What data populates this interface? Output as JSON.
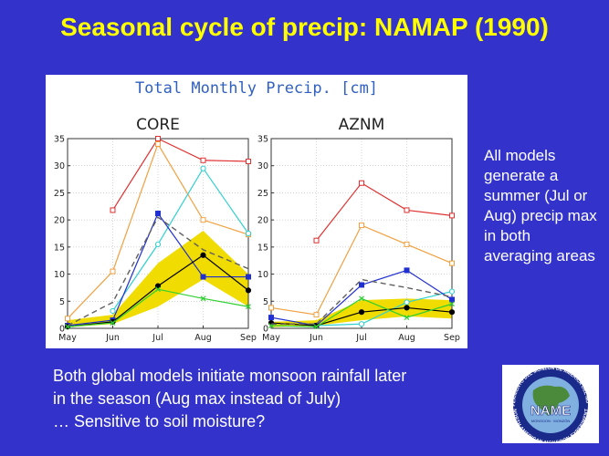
{
  "slide": {
    "title": "Seasonal cycle of precip: NAMAP (1990)",
    "side_note": "All models generate a summer (Jul or Aug) precip max in both averaging areas",
    "bottom_lines": [
      "Both global models initiate monsoon rainfall later",
      "in the season (Aug max instead of July)",
      "… Sensitive to soil moisture?"
    ],
    "logo": {
      "arc_top": "EXPERIMENTO DEL MONZÓN DE AMÉRICA DEL NORTE",
      "arc_bottom": "NORTH AMERICAN MONSOON EXPERIMENT",
      "center": "NAME",
      "small": "MONSOON · MONZÓN"
    }
  },
  "colors": {
    "background": "#3333cc",
    "title": "#ffff00",
    "band": "#f0dc00",
    "red": "#e03030",
    "orange": "#f0a040",
    "cyan": "#30d0d0",
    "blue": "#2030d0",
    "black": "#000000",
    "green": "#30d030",
    "dashed": "#606060"
  },
  "chart_data": {
    "title": "Total Monthly Precip. [cm]",
    "panels": [
      {
        "name": "CORE",
        "type": "line",
        "categories": [
          "May",
          "Jun",
          "Jul",
          "Aug",
          "Sep"
        ],
        "yticks": [
          0,
          5,
          10,
          15,
          20,
          25,
          30,
          35
        ],
        "ylim": [
          0,
          35
        ],
        "band": {
          "lower": [
            0.2,
            0.8,
            4,
            9,
            4
          ],
          "upper": [
            1.5,
            2.5,
            12,
            18,
            10
          ]
        },
        "series": [
          {
            "name": "red",
            "color": "#e03030",
            "marker": "square-open",
            "values": [
              null,
              21.8,
              35,
              31,
              30.8
            ]
          },
          {
            "name": "orange",
            "color": "#f0a040",
            "marker": "square-open",
            "values": [
              1.8,
              10.5,
              34,
              20,
              17.3
            ]
          },
          {
            "name": "cyan",
            "color": "#30d0d0",
            "marker": "circle-open",
            "values": [
              null,
              3.2,
              15.5,
              29.5,
              17.5
            ]
          },
          {
            "name": "blue",
            "color": "#2030d0",
            "marker": "square-filled",
            "values": [
              0.5,
              1.5,
              21.2,
              9.5,
              9.5
            ]
          },
          {
            "name": "black",
            "color": "#000000",
            "marker": "circle-filled",
            "values": [
              0.3,
              1.2,
              7.8,
              13.5,
              7
            ]
          },
          {
            "name": "green",
            "color": "#30d030",
            "marker": "x",
            "values": [
              0.3,
              1,
              7.2,
              5.5,
              4
            ]
          },
          {
            "name": "dashed",
            "color": "#606060",
            "marker": "none",
            "dashed": true,
            "values": [
              0.5,
              4.8,
              20.5,
              14.5,
              11
            ]
          }
        ]
      },
      {
        "name": "AZNM",
        "type": "line",
        "categories": [
          "May",
          "Jun",
          "Jul",
          "Aug",
          "Sep"
        ],
        "yticks": [
          0,
          5,
          10,
          15,
          20,
          25,
          30,
          35
        ],
        "ylim": [
          0,
          35
        ],
        "band": {
          "lower": [
            0.2,
            0.5,
            1.5,
            2.2,
            1.8
          ],
          "upper": [
            1.2,
            1.5,
            5.2,
            5.5,
            5.2
          ]
        },
        "series": [
          {
            "name": "red",
            "color": "#e03030",
            "marker": "square-open",
            "values": [
              null,
              16.2,
              26.8,
              21.8,
              20.8
            ]
          },
          {
            "name": "orange",
            "color": "#f0a040",
            "marker": "square-open",
            "values": [
              3.8,
              2.5,
              19,
              15.5,
              12
            ]
          },
          {
            "name": "cyan",
            "color": "#30d0d0",
            "marker": "circle-open",
            "values": [
              null,
              0.5,
              0.8,
              4.8,
              6.8
            ]
          },
          {
            "name": "blue",
            "color": "#2030d0",
            "marker": "square-filled",
            "values": [
              2,
              0.5,
              8,
              10.7,
              5.3
            ]
          },
          {
            "name": "black",
            "color": "#000000",
            "marker": "circle-filled",
            "values": [
              1,
              0.5,
              3,
              3.8,
              3
            ]
          },
          {
            "name": "green",
            "color": "#30d030",
            "marker": "x",
            "values": [
              0.5,
              0.3,
              5.5,
              2,
              4.5
            ]
          },
          {
            "name": "dashed",
            "color": "#606060",
            "marker": "none",
            "dashed": true,
            "values": [
              0.8,
              0.8,
              9,
              7.5,
              5.8
            ]
          }
        ]
      }
    ]
  }
}
